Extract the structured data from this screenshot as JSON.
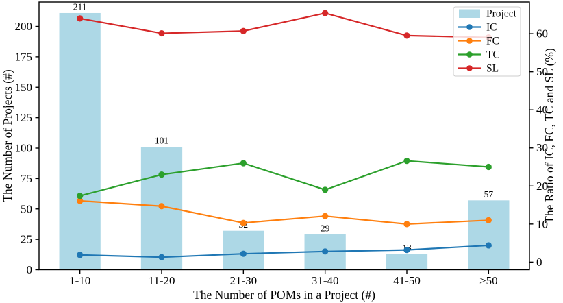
{
  "figure": {
    "background": "#ffffff",
    "spine_color": "#000000"
  },
  "chart_data": {
    "type": "bar+line",
    "categories": [
      "1-10",
      "11-20",
      "21-30",
      "31-40",
      "41-50",
      ">50"
    ],
    "xlabel": "The Number of POMs in a Project (#)",
    "ylabel_left": "The Number of Projects (#)",
    "ylabel_right": "The Ratio of IC, FC, TC and SL (%)",
    "left_axis": {
      "ticks": [
        0,
        25,
        50,
        75,
        100,
        125,
        150,
        175,
        200
      ],
      "min": 0,
      "max": 220
    },
    "right_axis": {
      "ticks": [
        0,
        10,
        20,
        30,
        40,
        50,
        60
      ],
      "min": -2,
      "max": 68.3
    },
    "series": [
      {
        "name": "Project",
        "type": "bar",
        "axis": "left",
        "color": "#add8e6",
        "values": [
          211,
          101,
          32,
          29,
          13,
          57
        ],
        "labels": [
          "211",
          "101",
          "32",
          "29",
          "13",
          "57"
        ]
      },
      {
        "name": "IC",
        "type": "line",
        "axis": "right",
        "color": "#1f77b4",
        "values": [
          1.9,
          1.3,
          2.2,
          2.8,
          3.2,
          4.4
        ]
      },
      {
        "name": "FC",
        "type": "line",
        "axis": "right",
        "color": "#ff7f0e",
        "values": [
          16.1,
          14.7,
          10.3,
          12.1,
          10.0,
          11.0
        ]
      },
      {
        "name": "TC",
        "type": "line",
        "axis": "right",
        "color": "#2ca02c",
        "values": [
          17.4,
          23.0,
          26.0,
          19.0,
          26.6,
          25.0
        ]
      },
      {
        "name": "SL",
        "type": "line",
        "axis": "right",
        "color": "#d62728",
        "values": [
          64.0,
          60.1,
          60.7,
          65.4,
          59.5,
          59.0
        ]
      }
    ],
    "legend": {
      "position": "upper-right",
      "entries": [
        "Project",
        "IC",
        "FC",
        "TC",
        "SL"
      ],
      "frame_color": "#cccccc",
      "frame_fill": "#ffffff"
    }
  }
}
